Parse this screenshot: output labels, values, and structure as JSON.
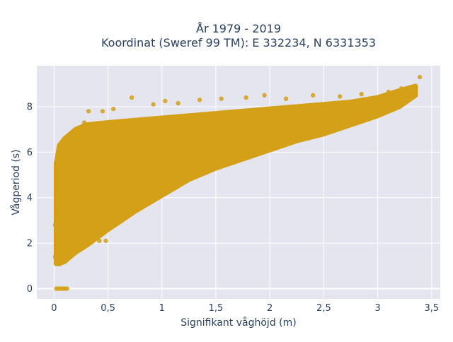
{
  "chart_data": {
    "type": "scatter",
    "title_line1": "År 1979 - 2019",
    "title_line2": "Koordinat (Sweref 99 TM): E 332234, N 6331353",
    "xlabel": "Signifikant våghöjd (m)",
    "ylabel": "Vågperiod (s)",
    "xlim": [
      -0.16,
      3.58
    ],
    "ylim": [
      -0.45,
      9.8
    ],
    "x_ticks": [
      0,
      0.5,
      1,
      1.5,
      2,
      2.5,
      3,
      3.5
    ],
    "x_tick_labels": [
      "0",
      "0,5",
      "1",
      "1,5",
      "2",
      "2,5",
      "3",
      "3,5"
    ],
    "y_ticks": [
      0,
      2,
      4,
      6,
      8
    ],
    "y_tick_labels": [
      "0",
      "2",
      "4",
      "6",
      "8"
    ],
    "grid": true,
    "point_color": "#D4A017",
    "plot_background": "#E5E5F0",
    "series": [
      {
        "envelope": [
          {
            "x": 0.02,
            "y_min": 1.1,
            "y_max": 5.5
          },
          {
            "x": 0.05,
            "y_min": 1.1,
            "y_max": 6.3
          },
          {
            "x": 0.1,
            "y_min": 1.2,
            "y_max": 6.6
          },
          {
            "x": 0.2,
            "y_min": 1.6,
            "y_max": 7.0
          },
          {
            "x": 0.3,
            "y_min": 1.9,
            "y_max": 7.2
          },
          {
            "x": 0.5,
            "y_min": 2.6,
            "y_max": 7.3
          },
          {
            "x": 0.75,
            "y_min": 3.4,
            "y_max": 7.4
          },
          {
            "x": 1.0,
            "y_min": 4.1,
            "y_max": 7.5
          },
          {
            "x": 1.25,
            "y_min": 4.8,
            "y_max": 7.6
          },
          {
            "x": 1.5,
            "y_min": 5.3,
            "y_max": 7.7
          },
          {
            "x": 1.75,
            "y_min": 5.7,
            "y_max": 7.8
          },
          {
            "x": 2.0,
            "y_min": 6.1,
            "y_max": 7.9
          },
          {
            "x": 2.25,
            "y_min": 6.5,
            "y_max": 8.0
          },
          {
            "x": 2.5,
            "y_min": 6.8,
            "y_max": 8.1
          },
          {
            "x": 2.75,
            "y_min": 7.2,
            "y_max": 8.2
          },
          {
            "x": 3.0,
            "y_min": 7.6,
            "y_max": 8.4
          },
          {
            "x": 3.2,
            "y_min": 8.0,
            "y_max": 8.7
          },
          {
            "x": 3.35,
            "y_min": 8.5,
            "y_max": 8.9
          }
        ],
        "points": [
          {
            "x": 3.39,
            "y": 9.3
          },
          {
            "x": 3.3,
            "y": 8.85
          },
          {
            "x": 3.22,
            "y": 8.8
          },
          {
            "x": 3.1,
            "y": 8.65
          },
          {
            "x": 3.05,
            "y": 8.2
          },
          {
            "x": 2.85,
            "y": 8.55
          },
          {
            "x": 2.65,
            "y": 8.45
          },
          {
            "x": 2.4,
            "y": 8.5
          },
          {
            "x": 2.15,
            "y": 8.35
          },
          {
            "x": 1.95,
            "y": 8.5
          },
          {
            "x": 1.78,
            "y": 8.4
          },
          {
            "x": 1.55,
            "y": 8.35
          },
          {
            "x": 1.35,
            "y": 8.3
          },
          {
            "x": 1.15,
            "y": 8.15
          },
          {
            "x": 1.03,
            "y": 8.25
          },
          {
            "x": 0.92,
            "y": 8.1
          },
          {
            "x": 0.72,
            "y": 8.4
          },
          {
            "x": 0.55,
            "y": 7.9
          },
          {
            "x": 0.45,
            "y": 7.8
          },
          {
            "x": 0.32,
            "y": 7.8
          },
          {
            "x": 0.02,
            "y": 0.0
          },
          {
            "x": 0.04,
            "y": 0.0
          },
          {
            "x": 0.06,
            "y": 0.0
          },
          {
            "x": 0.08,
            "y": 0.0
          },
          {
            "x": 0.1,
            "y": 0.0
          },
          {
            "x": 0.12,
            "y": 0.0
          },
          {
            "x": 0.01,
            "y": 2.8
          },
          {
            "x": 0.01,
            "y": 1.4
          },
          {
            "x": 0.03,
            "y": 1.15
          },
          {
            "x": 0.06,
            "y": 5.8
          },
          {
            "x": 0.08,
            "y": 6.4
          },
          {
            "x": 0.18,
            "y": 6.9
          },
          {
            "x": 0.28,
            "y": 7.3
          },
          {
            "x": 0.3,
            "y": 1.95
          },
          {
            "x": 0.42,
            "y": 2.1
          },
          {
            "x": 0.48,
            "y": 2.1
          },
          {
            "x": 0.8,
            "y": 3.7
          },
          {
            "x": 1.5,
            "y": 5.6
          },
          {
            "x": 2.5,
            "y": 6.9
          },
          {
            "x": 2.9,
            "y": 7.6
          }
        ]
      }
    ]
  }
}
